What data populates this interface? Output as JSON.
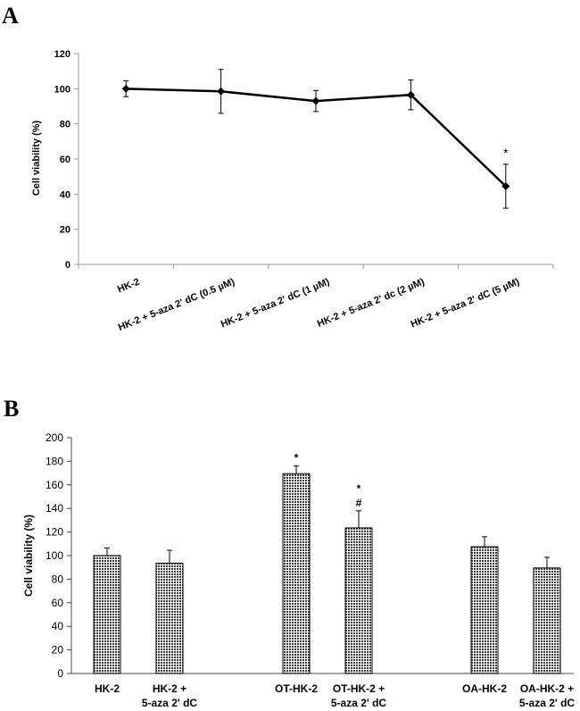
{
  "panels": {
    "a": {
      "label": "A"
    },
    "b": {
      "label": "B"
    }
  },
  "chart_data": [
    {
      "type": "line",
      "panel": "A",
      "title": "",
      "xlabel": "",
      "ylabel": "Cell viability (%)",
      "ylim": [
        0,
        120
      ],
      "yticks": [
        0,
        20,
        40,
        60,
        80,
        100,
        120
      ],
      "categories": [
        "HK-2",
        "HK-2 + 5-aza 2' dC (0.5 µM)",
        "HK-2 + 5-aza 2' dC (1 µM)",
        "HK-2 + 5-aza 2' dc (2 µM)",
        "HK-2 + 5-aza 2' dC (5 µM)"
      ],
      "series": [
        {
          "name": "Cell viability",
          "values": [
            100,
            98.5,
            93,
            96.5,
            44.5
          ],
          "errors": [
            4.5,
            12.5,
            6,
            8.5,
            12.5
          ]
        }
      ],
      "annotations": [
        "",
        "",
        "",
        "",
        "*"
      ]
    },
    {
      "type": "bar",
      "panel": "B",
      "title": "",
      "xlabel": "",
      "ylabel": "Cell viability (%)",
      "ylim": [
        0,
        200
      ],
      "yticks": [
        0,
        20,
        40,
        60,
        80,
        100,
        120,
        140,
        160,
        180,
        200
      ],
      "categories": [
        [
          "HK-2"
        ],
        [
          "HK-2 +",
          "5-aza 2' dC"
        ],
        [
          "OT-HK-2"
        ],
        [
          "OT-HK-2 +",
          "5-aza 2' dC"
        ],
        [
          "OA-HK-2"
        ],
        [
          "OA-HK-2 +",
          "5-aza 2' dC"
        ]
      ],
      "series": [
        {
          "name": "Cell viability",
          "values": [
            100,
            93.5,
            169.5,
            123.5,
            107.5,
            89.5
          ],
          "errors": [
            6.5,
            11,
            6.5,
            14.5,
            8.5,
            9
          ]
        }
      ],
      "annotations": [
        [],
        [],
        [
          "*"
        ],
        [
          "*",
          "#"
        ],
        [],
        []
      ]
    }
  ]
}
